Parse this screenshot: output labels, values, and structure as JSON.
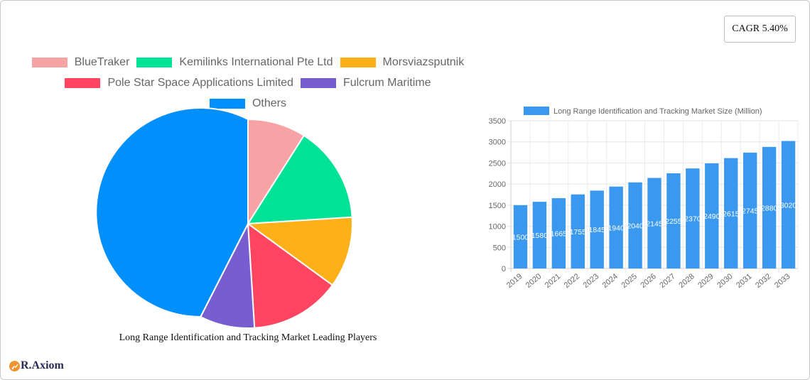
{
  "cagr": {
    "label": "CAGR 5.40%"
  },
  "logo": {
    "text": "R.Axiom"
  },
  "pie": {
    "title": "Long Range Identification and Tracking Market Leading Players",
    "legend_rows": [
      [
        {
          "label": "BlueTraker",
          "color": "#f7a3a6"
        },
        {
          "label": "Kemilinks International Pte Ltd",
          "color": "#00e396"
        },
        {
          "label": "Morsviazsputnik",
          "color": "#feb019"
        }
      ],
      [
        {
          "label": "Pole Star Space Applications Limited",
          "color": "#ff4560"
        },
        {
          "label": "Fulcrum Maritime",
          "color": "#775dd0"
        }
      ],
      [
        {
          "label": "Others",
          "color": "#008ffb"
        }
      ]
    ]
  },
  "bar": {
    "legend_label": "Long Range Identification and Tracking Market Size (Million)",
    "bar_color": "#3a99ee"
  },
  "chart_data": [
    {
      "type": "pie",
      "title": "Long Range Identification and Tracking Market Leading Players",
      "categories": [
        "BlueTraker",
        "Kemilinks International Pte Ltd",
        "Morsviazsputnik",
        "Pole Star Space Applications Limited",
        "Fulcrum Maritime",
        "Others"
      ],
      "values": [
        9,
        15,
        11,
        14,
        8.5,
        42.5
      ],
      "colors": [
        "#f7a3a6",
        "#00e396",
        "#feb019",
        "#ff4560",
        "#775dd0",
        "#008ffb"
      ],
      "legend_position": "top"
    },
    {
      "type": "bar",
      "title": "",
      "categories": [
        "2019",
        "2020",
        "2021",
        "2022",
        "2023",
        "2024",
        "2025",
        "2026",
        "2027",
        "2028",
        "2029",
        "2030",
        "2031",
        "2032",
        "2033"
      ],
      "series": [
        {
          "name": "Long Range Identification and Tracking Market Size (Million)",
          "values": [
            1500,
            1580,
            1665,
            1755,
            1845,
            1940,
            2040,
            2145,
            2255,
            2370,
            2490,
            2615,
            2745,
            2880,
            3020
          ]
        }
      ],
      "xlabel": "",
      "ylabel": "",
      "ylim": [
        0,
        3500
      ],
      "yticks": [
        0,
        500,
        1000,
        1500,
        2000,
        2500,
        3000,
        3500
      ],
      "grid": true,
      "legend_position": "top",
      "data_labels": true
    }
  ]
}
